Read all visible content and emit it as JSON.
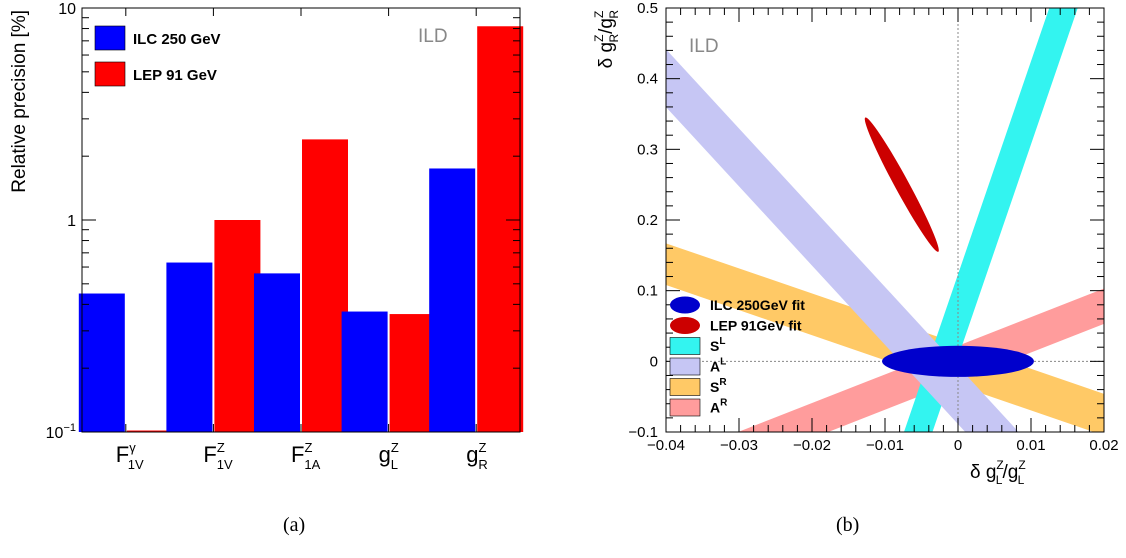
{
  "charts": {
    "a": {
      "caption": "(a)",
      "watermark": "ILD",
      "watermark_color": "#888888",
      "legend_placement": "top-left"
    },
    "b": {
      "caption": "(b)",
      "watermark": "ILD",
      "watermark_color": "#888888",
      "legend_placement": "bottom-left"
    }
  },
  "chart_data": [
    {
      "type": "bar",
      "scale": "log",
      "ylabel": "Relative precision [%]",
      "ylim": [
        0.1,
        10
      ],
      "y_ticks": [
        {
          "value": 0.1,
          "base": "10",
          "exp": "−1"
        },
        {
          "value": 1,
          "base": "1",
          "exp": ""
        },
        {
          "value": 10,
          "base": "10",
          "exp": ""
        }
      ],
      "categories": [
        {
          "base": "F",
          "sup": "γ",
          "sub": "1V"
        },
        {
          "base": "F",
          "sup": "Z",
          "sub": "1V"
        },
        {
          "base": "F",
          "sup": "Z",
          "sub": "1A"
        },
        {
          "base": "g",
          "sup": "Z",
          "sub": "L"
        },
        {
          "base": "g",
          "sup": "Z",
          "sub": "R"
        }
      ],
      "series": [
        {
          "name": "ILC 250 GeV",
          "color": "#0000ff",
          "values": [
            0.45,
            0.63,
            0.56,
            0.37,
            1.75
          ]
        },
        {
          "name": "LEP  91 GeV",
          "color": "#ff0000",
          "values": [
            0.1,
            1.0,
            2.4,
            0.36,
            8.2
          ]
        }
      ]
    },
    {
      "type": "contour",
      "xlim": [
        -0.04,
        0.02
      ],
      "ylim": [
        -0.1,
        0.5
      ],
      "grid": false,
      "x_ticks": [
        -0.04,
        -0.03,
        -0.02,
        -0.01,
        0,
        0.01,
        0.02
      ],
      "y_ticks": [
        -0.1,
        0,
        0.1,
        0.2,
        0.3,
        0.4,
        0.5
      ],
      "xlabel": {
        "prefix": "δ g",
        "n_sup": "Z",
        "n_sub": "L",
        "slash": "/g",
        "d_sup": "Z",
        "d_sub": "L"
      },
      "ylabel": {
        "prefix": "δ g",
        "n_sup": "Z",
        "n_sub": "R",
        "slash": "/g",
        "d_sup": "Z",
        "d_sub": "R"
      },
      "bands": [
        {
          "name": "S",
          "sup": "R",
          "color": "#ffc966",
          "polygon": [
            [
              -0.04,
              0.167
            ],
            [
              -0.04,
              0.108
            ],
            [
              0.02,
              -0.105
            ],
            [
              0.02,
              -0.046
            ]
          ]
        },
        {
          "name": "A",
          "sup": "R",
          "color": "#ff9c9c",
          "polygon": [
            [
              -0.04,
              -0.19
            ],
            [
              -0.04,
              -0.14
            ],
            [
              0.02,
              0.103
            ],
            [
              0.02,
              0.053
            ]
          ]
        },
        {
          "name": "S",
          "sup": "L",
          "color": "#33f4f0",
          "polygon": [
            [
              -0.0074,
              -0.1
            ],
            [
              -0.0035,
              -0.1
            ],
            [
              0.0164,
              0.5
            ],
            [
              0.0125,
              0.5
            ]
          ]
        },
        {
          "name": "A",
          "sup": "L",
          "color": "#c6c6f4",
          "polygon": [
            [
              -0.0525,
              0.5
            ],
            [
              -0.0452,
              0.5
            ],
            [
              0.0083,
              -0.1
            ],
            [
              0.001,
              -0.1
            ]
          ]
        }
      ],
      "ellipses": [
        {
          "name": "LEP 91GeV fit",
          "color": "#cc0000",
          "center": [
            -0.0077,
            0.25
          ],
          "semi_major": 0.1,
          "semi_minor": 0.0018,
          "dx": 0.005,
          "dy": -0.095
        },
        {
          "name": "ILC 250GeV fit",
          "color": "#0000cc",
          "center": [
            0,
            0
          ],
          "rx": 0.0016,
          "ry": 0.022
        }
      ],
      "legend": [
        {
          "label": "ILC 250GeV fit",
          "color": "#0000cc",
          "shape": "ellipse"
        },
        {
          "label": "LEP 91GeV fit",
          "color": "#cc0000",
          "shape": "ellipse"
        },
        {
          "base": "S",
          "sup": "L",
          "color": "#33f4f0",
          "shape": "box"
        },
        {
          "base": "A",
          "sup": "L",
          "color": "#c6c6f4",
          "shape": "box"
        },
        {
          "base": "S",
          "sup": "R",
          "color": "#ffc966",
          "shape": "box"
        },
        {
          "base": "A",
          "sup": "R",
          "color": "#ff9c9c",
          "shape": "box"
        }
      ]
    }
  ]
}
